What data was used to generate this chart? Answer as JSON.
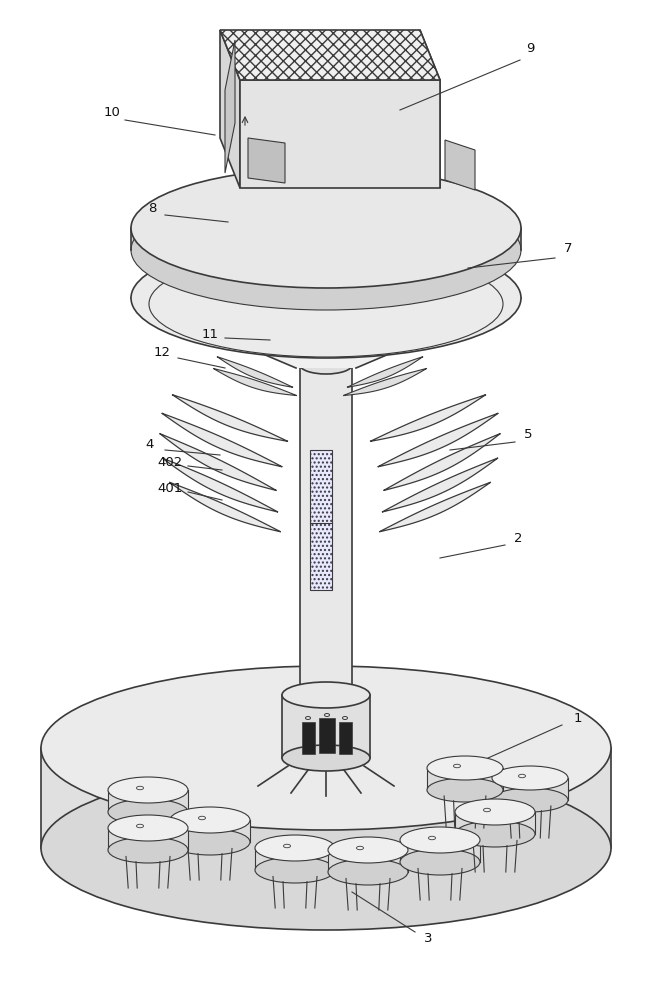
{
  "bg_color": "#ffffff",
  "line_color": "#3a3a3a",
  "labels": [
    [
      "9",
      530,
      48,
      520,
      60,
      400,
      110
    ],
    [
      "10",
      112,
      112,
      125,
      120,
      215,
      135
    ],
    [
      "8",
      152,
      208,
      165,
      215,
      228,
      222
    ],
    [
      "7",
      568,
      248,
      555,
      258,
      468,
      268
    ],
    [
      "11",
      210,
      335,
      225,
      338,
      270,
      340
    ],
    [
      "12",
      162,
      352,
      178,
      358,
      225,
      368
    ],
    [
      "5",
      528,
      435,
      515,
      442,
      450,
      450
    ],
    [
      "4",
      150,
      445,
      165,
      450,
      220,
      455
    ],
    [
      "402",
      170,
      462,
      188,
      466,
      222,
      470
    ],
    [
      "401",
      170,
      488,
      188,
      492,
      222,
      500
    ],
    [
      "2",
      518,
      538,
      505,
      545,
      440,
      558
    ],
    [
      "1",
      578,
      718,
      562,
      725,
      488,
      758
    ],
    [
      "3",
      428,
      938,
      415,
      932,
      352,
      892
    ]
  ]
}
